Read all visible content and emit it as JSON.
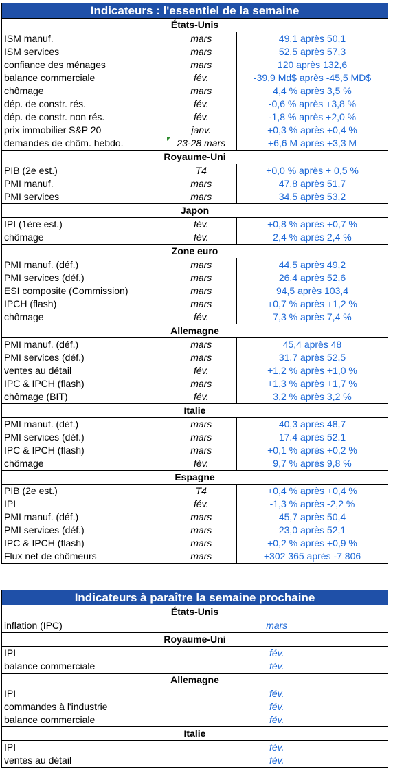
{
  "week_title": "Indicateurs : l'essentiel de la semaine",
  "week_sections": [
    {
      "country": "États-Unis",
      "rows": [
        {
          "label": "ISM manuf.",
          "period": "mars",
          "value": "49,1 après 50,1"
        },
        {
          "label": "ISM services",
          "period": "mars",
          "value": "52,5 après 57,3"
        },
        {
          "label": "confiance des ménages",
          "period": "mars",
          "value": "120 après 132,6"
        },
        {
          "label": "balance commerciale",
          "period": "fév.",
          "value": "-39,9 Md$ après -45,5 MD$"
        },
        {
          "label": "chômage",
          "period": "mars",
          "value": "4,4 % après 3,5 %"
        },
        {
          "label": "dép. de constr. rés.",
          "period": "fév.",
          "value": "-0,6 % après +3,8 %"
        },
        {
          "label": "dép. de constr. non rés.",
          "period": "fév.",
          "value": "-1,8 % après +2,0 %"
        },
        {
          "label": "prix immobilier S&P 20",
          "period": "janv.",
          "value": "+0,3 % après +0,4 %"
        },
        {
          "label": "demandes de chôm. hebdo.",
          "period": "23-28 mars",
          "value": "+6,6 M après +3,3 M",
          "comment_marker": true
        }
      ]
    },
    {
      "country": "Royaume-Uni",
      "rows": [
        {
          "label": "PIB (2e est.)",
          "period": "T4",
          "value": "+0,0 % après + 0,5 %"
        },
        {
          "label": "PMI manuf.",
          "period": "mars",
          "value": "47,8 après 51,7"
        },
        {
          "label": "PMI services",
          "period": "mars",
          "value": "34,5 après 53,2"
        }
      ]
    },
    {
      "country": "Japon",
      "rows": [
        {
          "label": "IPI (1ère est.)",
          "period": "fév.",
          "value": "+0,8 % après +0,7 %"
        },
        {
          "label": "chômage",
          "period": "fév.",
          "value": "2,4 % après 2,4 %"
        }
      ]
    },
    {
      "country": "Zone euro",
      "rows": [
        {
          "label": "PMI manuf. (déf.)",
          "period": "mars",
          "value": "44,5 après 49,2"
        },
        {
          "label": "PMI services (déf.)",
          "period": "mars",
          "value": "26,4 après 52,6"
        },
        {
          "label": "ESI composite (Commission)",
          "period": "mars",
          "value": "94,5 après 103,4"
        },
        {
          "label": "IPCH (flash)",
          "period": "mars",
          "value": "+0,7 % après +1,2 %"
        },
        {
          "label": "chômage",
          "period": "fév.",
          "value": "7,3 % après 7,4 %"
        }
      ]
    },
    {
      "country": "Allemagne",
      "rows": [
        {
          "label": "PMI manuf. (déf.)",
          "period": "mars",
          "value": "45,4  après 48"
        },
        {
          "label": "PMI services (déf.)",
          "period": "mars",
          "value": "31,7  après 52,5"
        },
        {
          "label": "ventes au détail",
          "period": "fév.",
          "value": "+1,2 % après +1,0 %"
        },
        {
          "label": "IPC & IPCH (flash)",
          "period": "mars",
          "value": "+1,3 % après +1,7 %"
        },
        {
          "label": "chômage (BIT)",
          "period": "fév.",
          "value": "3,2 % après 3,2 %"
        }
      ]
    },
    {
      "country": "Italie",
      "rows": [
        {
          "label": "PMI manuf. (déf.)",
          "period": "mars",
          "value": "40,3 après 48,7"
        },
        {
          "label": "PMI services (déf.)",
          "period": "mars",
          "value": "17.4 après 52.1"
        },
        {
          "label": "IPC & IPCH (flash)",
          "period": "mars",
          "value": "+0,1 % après +0,2 %"
        },
        {
          "label": "chômage",
          "period": "fév.",
          "value": "9,7 % après 9,8 %"
        }
      ]
    },
    {
      "country": "Espagne",
      "rows": [
        {
          "label": "PIB (2e est.)",
          "period": "T4",
          "value": "+0,4 % après +0,4 %"
        },
        {
          "label": "IPI",
          "period": "fév.",
          "value": "-1,3 % après -2,2 %"
        },
        {
          "label": "PMI manuf. (déf.)",
          "period": "mars",
          "value": "45,7 après 50,4"
        },
        {
          "label": "PMI services (déf.)",
          "period": "mars",
          "value": "23,0 après 52,1"
        },
        {
          "label": "IPC & IPCH (flash)",
          "period": "mars",
          "value": "+0,2 %  après +0,9 %"
        },
        {
          "label": "Flux net de chômeurs",
          "period": "mars",
          "value": "+302 365 après -7 806"
        }
      ]
    }
  ],
  "next_title": "Indicateurs à paraître la semaine prochaine",
  "next_sections": [
    {
      "country": "États-Unis",
      "rows": [
        {
          "label": "inflation (IPC)",
          "period": "mars"
        }
      ]
    },
    {
      "country": "Royaume-Uni",
      "rows": [
        {
          "label": "IPI",
          "period": "fév."
        },
        {
          "label": "balance commerciale",
          "period": "fév."
        }
      ]
    },
    {
      "country": "Allemagne",
      "rows": [
        {
          "label": "IPI",
          "period": "fév."
        },
        {
          "label": "commandes à l'industrie",
          "period": "fév."
        },
        {
          "label": "balance commerciale",
          "period": "fév."
        }
      ]
    },
    {
      "country": "Italie",
      "rows": [
        {
          "label": "IPI",
          "period": "fév."
        },
        {
          "label": "ventes au détail",
          "period": "fév."
        }
      ]
    }
  ],
  "colors": {
    "header_bg": "#1f50a8",
    "value_text": "#1a66d6",
    "comment_marker": "#2e8b2e"
  }
}
